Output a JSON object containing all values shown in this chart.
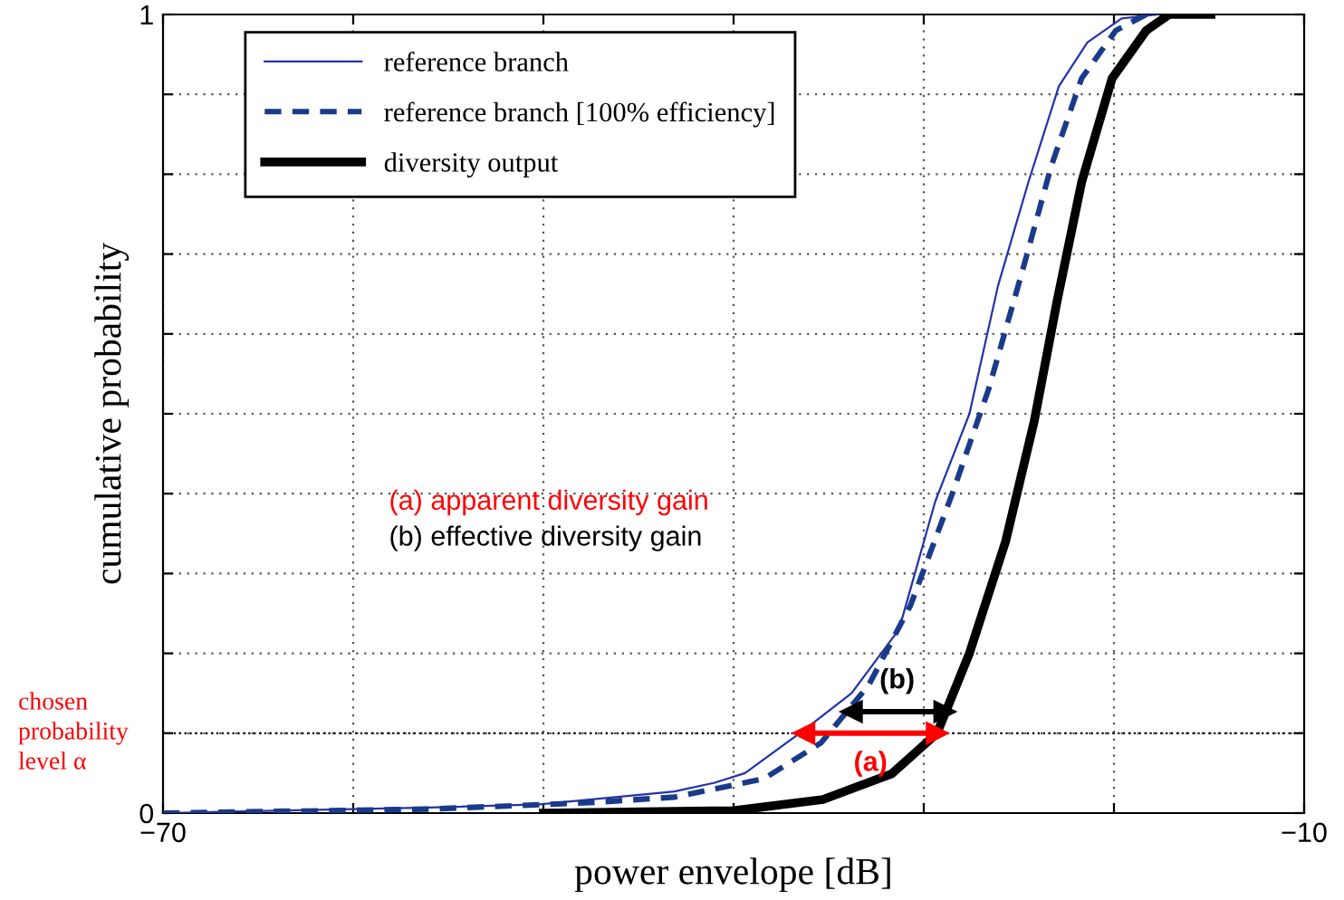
{
  "chart_data": {
    "type": "line",
    "xlabel": "power envelope [dB]",
    "ylabel": "cumulative probability",
    "xlim": [
      -70,
      -10
    ],
    "ylim": [
      0,
      1
    ],
    "xticks": [
      {
        "value": -70,
        "label": "−70"
      },
      {
        "value": -60,
        "label": null
      },
      {
        "value": -50,
        "label": null
      },
      {
        "value": -40,
        "label": null
      },
      {
        "value": -30,
        "label": null
      },
      {
        "value": -20,
        "label": null
      },
      {
        "value": -10,
        "label": "−10"
      }
    ],
    "yticks": [
      0,
      {
        "value": 0.1,
        "label": null
      },
      {
        "value": 0.2,
        "label": null
      },
      {
        "value": 0.3,
        "label": null
      },
      {
        "value": 0.4,
        "label": null
      },
      {
        "value": 0.5,
        "label": null
      },
      {
        "value": 0.6,
        "label": null
      },
      {
        "value": 0.7,
        "label": null
      },
      {
        "value": 0.8,
        "label": null
      },
      {
        "value": 0.9,
        "label": null
      },
      1
    ],
    "grid": true,
    "legend": "top left",
    "marker": "none",
    "series": [
      {
        "name": "reference branch",
        "color": "#2233aa",
        "line_style": "solid",
        "x": [
          -70,
          -56,
          -50.2,
          -43.1,
          -41,
          -39.4,
          -36.3,
          -33.8,
          -31.3,
          -29.4,
          -27.6,
          -26.1,
          -24.5,
          -22.9,
          -21.4,
          -19.6,
          -17.7
        ],
        "values": [
          0,
          0.007,
          0.011,
          0.027,
          0.038,
          0.05,
          0.104,
          0.15,
          0.23,
          0.39,
          0.5,
          0.66,
          0.79,
          0.91,
          0.965,
          0.995,
          1.0
        ]
      },
      {
        "name": "reference branch [100% efficiency]",
        "color": "#1a3a8a",
        "line_style": "dashed",
        "x": [
          -70,
          -56,
          -47.6,
          -43.1,
          -38.4,
          -35.4,
          -32.9,
          -30.7,
          -28.5,
          -26.6,
          -24.8,
          -23.3,
          -21.7,
          -19.9,
          -18.3
        ],
        "values": [
          0,
          0.005,
          0.013,
          0.02,
          0.043,
          0.088,
          0.16,
          0.26,
          0.4,
          0.53,
          0.68,
          0.81,
          0.92,
          0.98,
          1.0
        ]
      },
      {
        "name": "diversity output",
        "color": "#000000",
        "line_style": "solid",
        "x": [
          -50,
          -40,
          -35.3,
          -31.7,
          -29.3,
          -27.6,
          -25.7,
          -24.2,
          -23.0,
          -21.7,
          -20.1,
          -18.3,
          -17.1,
          -14.9
        ],
        "values": [
          0,
          0.003,
          0.017,
          0.049,
          0.1,
          0.2,
          0.34,
          0.49,
          0.64,
          0.79,
          0.92,
          0.98,
          1.0,
          1.0
        ]
      },
      {
        "color": "#ff0000",
        "line_style": "solid",
        "marker": "triangle",
        "x": [
          -36.3,
          -29.3
        ],
        "values": [
          0.1,
          0.1
        ]
      },
      {
        "color": "#000000",
        "line_style": "solid",
        "marker": "triangle",
        "x": [
          -33.8,
          -28.9
        ],
        "values": [
          0.127,
          0.127
        ]
      }
    ],
    "ref_lines": [
      {
        "axis": "y",
        "value": 0.1,
        "label": "chosen\nprobability\nlevel α",
        "color": "#000000",
        "line_style": "dotted"
      }
    ],
    "annotations": [
      "(a) apparent diversity gain",
      "(b) effective diversity gain",
      {
        "text": "(a)",
        "x": -32.8,
        "y": 0.1
      },
      {
        "text": "(b)",
        "x": -31.4,
        "y": 0.127
      }
    ]
  }
}
